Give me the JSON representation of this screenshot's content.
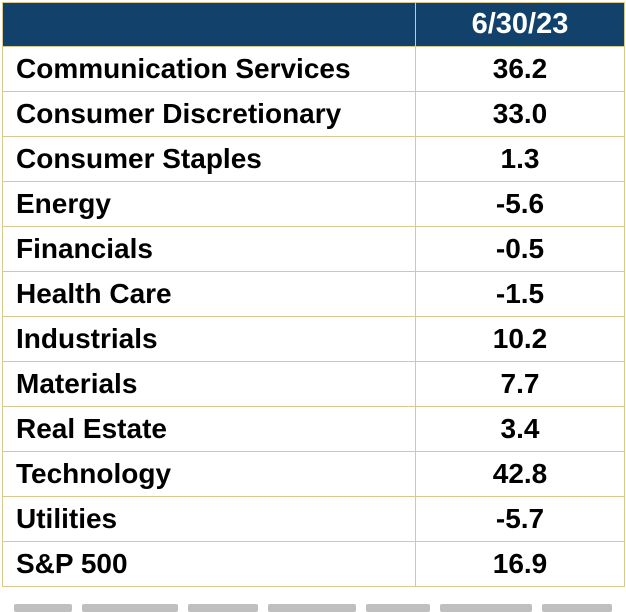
{
  "table": {
    "header": {
      "label": "",
      "value": "6/30/23"
    },
    "rows": [
      {
        "label": "Communication Services",
        "value": "36.2"
      },
      {
        "label": "Consumer Discretionary",
        "value": "33.0"
      },
      {
        "label": "Consumer Staples",
        "value": "1.3"
      },
      {
        "label": "Energy",
        "value": "-5.6"
      },
      {
        "label": "Financials",
        "value": "-0.5"
      },
      {
        "label": "Health Care",
        "value": "-1.5"
      },
      {
        "label": "Industrials",
        "value": "10.2"
      },
      {
        "label": "Materials",
        "value": "7.7"
      },
      {
        "label": "Real Estate",
        "value": "3.4"
      },
      {
        "label": "Technology",
        "value": "42.8"
      },
      {
        "label": "Utilities",
        "value": "-5.7"
      },
      {
        "label": "S&P 500",
        "value": "16.9"
      }
    ]
  },
  "colors": {
    "header_bg": "#12426b",
    "header_text": "#ffffff",
    "border": "#d9c98f",
    "cell_text": "#000000"
  }
}
